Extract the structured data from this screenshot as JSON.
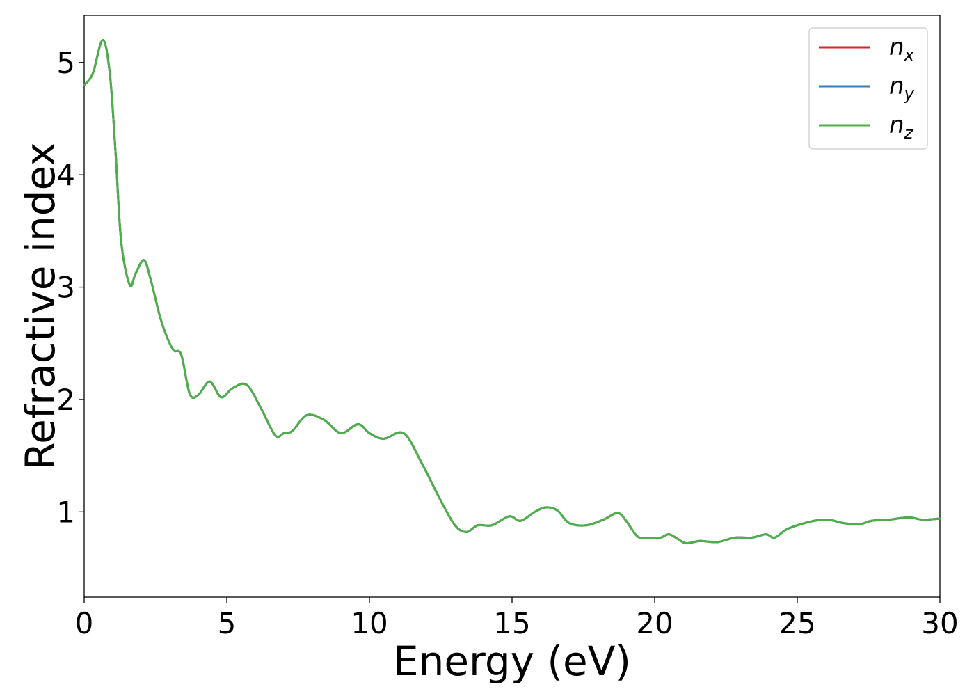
{
  "chart_data": {
    "type": "line",
    "xlabel": "Energy (eV)",
    "ylabel": "Refractive index",
    "xlim": [
      0,
      30
    ],
    "ylim": [
      0.24,
      5.42
    ],
    "xticks": [
      0,
      5,
      10,
      15,
      20,
      25,
      30
    ],
    "yticks": [
      1,
      2,
      3,
      4,
      5
    ],
    "grid": false,
    "legend_position": "top-right",
    "x": [
      0,
      0.3,
      0.65,
      0.9,
      1.1,
      1.3,
      1.6,
      1.8,
      2.1,
      2.35,
      2.7,
      3.1,
      3.4,
      3.7,
      4.0,
      4.4,
      4.8,
      5.2,
      5.7,
      6.2,
      6.7,
      7.0,
      7.3,
      7.8,
      8.4,
      9.0,
      9.6,
      10.0,
      10.5,
      11.2,
      11.8,
      12.5,
      13.0,
      13.4,
      13.8,
      14.3,
      14.9,
      15.3,
      15.8,
      16.2,
      16.6,
      17.0,
      17.6,
      18.2,
      18.7,
      19.0,
      19.4,
      19.8,
      20.2,
      20.5,
      20.8,
      21.1,
      21.6,
      22.2,
      22.8,
      23.4,
      23.9,
      24.2,
      24.6,
      25.0,
      25.6,
      26.1,
      26.6,
      27.2,
      27.6,
      28.2,
      28.9,
      29.4,
      30.0
    ],
    "series": [
      {
        "name": "n_x",
        "label_base": "n",
        "label_sub": "x",
        "color": "#d62728",
        "values": [
          4.8,
          4.9,
          5.2,
          4.9,
          4.2,
          3.4,
          3.02,
          3.12,
          3.24,
          3.05,
          2.7,
          2.45,
          2.4,
          2.05,
          2.04,
          2.16,
          2.02,
          2.1,
          2.13,
          1.92,
          1.68,
          1.7,
          1.72,
          1.86,
          1.82,
          1.7,
          1.78,
          1.7,
          1.65,
          1.7,
          1.45,
          1.1,
          0.88,
          0.82,
          0.88,
          0.88,
          0.96,
          0.92,
          1.0,
          1.04,
          1.01,
          0.9,
          0.88,
          0.93,
          0.99,
          0.92,
          0.78,
          0.77,
          0.77,
          0.8,
          0.76,
          0.72,
          0.74,
          0.73,
          0.77,
          0.77,
          0.8,
          0.77,
          0.84,
          0.88,
          0.92,
          0.93,
          0.9,
          0.89,
          0.92,
          0.93,
          0.95,
          0.93,
          0.94
        ]
      },
      {
        "name": "n_y",
        "label_base": "n",
        "label_sub": "y",
        "color": "#377eb8",
        "values": [
          4.8,
          4.9,
          5.2,
          4.9,
          4.2,
          3.4,
          3.02,
          3.12,
          3.24,
          3.05,
          2.7,
          2.45,
          2.4,
          2.05,
          2.04,
          2.16,
          2.02,
          2.1,
          2.13,
          1.92,
          1.68,
          1.7,
          1.72,
          1.86,
          1.82,
          1.7,
          1.78,
          1.7,
          1.65,
          1.7,
          1.45,
          1.1,
          0.88,
          0.82,
          0.88,
          0.88,
          0.96,
          0.92,
          1.0,
          1.04,
          1.01,
          0.9,
          0.88,
          0.93,
          0.99,
          0.92,
          0.78,
          0.77,
          0.77,
          0.8,
          0.76,
          0.72,
          0.74,
          0.73,
          0.77,
          0.77,
          0.8,
          0.77,
          0.84,
          0.88,
          0.92,
          0.93,
          0.9,
          0.89,
          0.92,
          0.93,
          0.95,
          0.93,
          0.94
        ]
      },
      {
        "name": "n_z",
        "label_base": "n",
        "label_sub": "z",
        "color": "#4daf4a",
        "values": [
          4.8,
          4.9,
          5.2,
          4.9,
          4.2,
          3.4,
          3.02,
          3.12,
          3.24,
          3.05,
          2.7,
          2.45,
          2.4,
          2.05,
          2.04,
          2.16,
          2.02,
          2.1,
          2.13,
          1.92,
          1.68,
          1.7,
          1.72,
          1.86,
          1.82,
          1.7,
          1.78,
          1.7,
          1.65,
          1.7,
          1.45,
          1.1,
          0.88,
          0.82,
          0.88,
          0.88,
          0.96,
          0.92,
          1.0,
          1.04,
          1.01,
          0.9,
          0.88,
          0.93,
          0.99,
          0.92,
          0.78,
          0.77,
          0.77,
          0.8,
          0.76,
          0.72,
          0.74,
          0.73,
          0.77,
          0.77,
          0.8,
          0.77,
          0.84,
          0.88,
          0.92,
          0.93,
          0.9,
          0.89,
          0.92,
          0.93,
          0.95,
          0.93,
          0.94
        ]
      }
    ]
  }
}
